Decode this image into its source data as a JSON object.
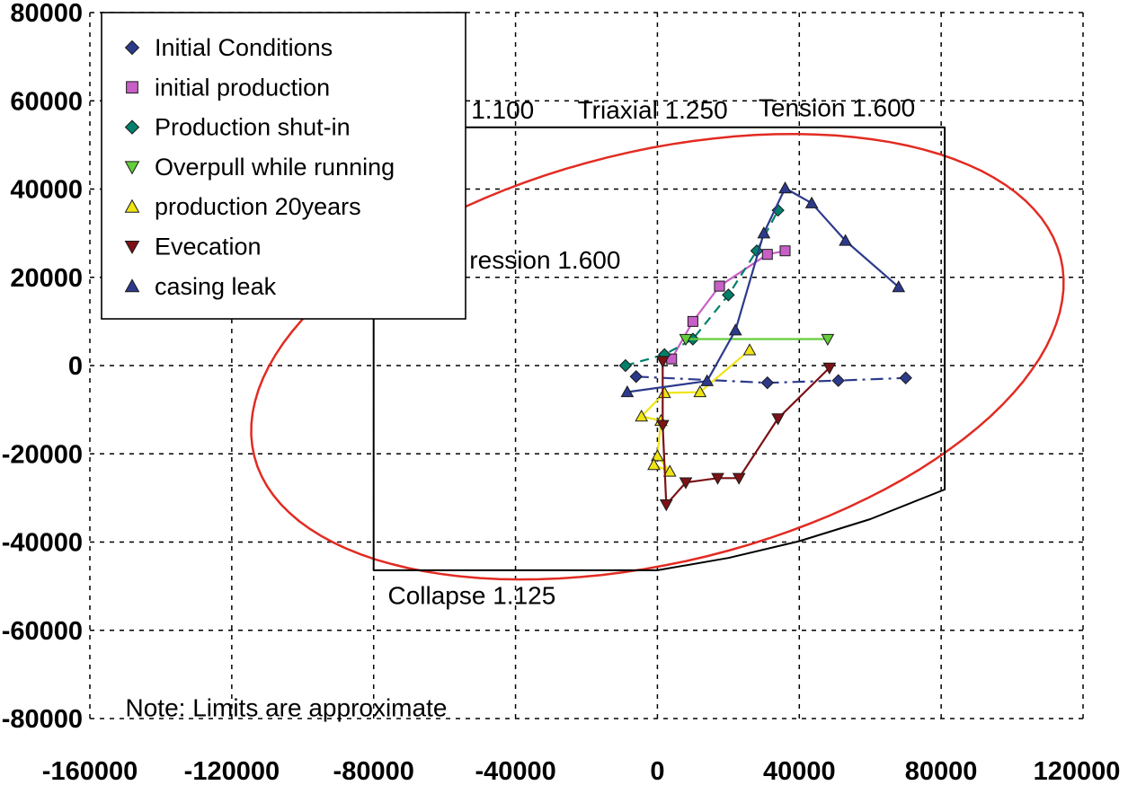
{
  "chart_data": {
    "type": "line",
    "title": "",
    "xlabel": "",
    "ylabel": "",
    "xlim": [
      -160000,
      120000
    ],
    "ylim": [
      -80000,
      80000
    ],
    "xticks": [
      -160000,
      -120000,
      -80000,
      -40000,
      0,
      40000,
      80000,
      120000
    ],
    "yticks": [
      80000,
      60000,
      40000,
      20000,
      0,
      -20000,
      -40000,
      -60000,
      -80000
    ],
    "grid": "dashed",
    "grid_color": "#000000",
    "triaxial_ellipse": {
      "cx": 0,
      "cy": 2000,
      "a": 116000,
      "b": 47000,
      "rotation_deg": 10,
      "color": "#e22b22"
    },
    "design_envelope": {
      "color": "#000000",
      "points": [
        [
          -80000,
          54000
        ],
        [
          81000,
          54000
        ],
        [
          81000,
          -28100
        ],
        [
          60000,
          -34800
        ],
        [
          40000,
          -39800
        ],
        [
          20000,
          -43600
        ],
        [
          0,
          -46400
        ],
        [
          -80000,
          -46400
        ]
      ]
    },
    "annotations": [
      {
        "id": "label-1100",
        "text": "1.100",
        "x": -52500,
        "y": 58000,
        "size": 28
      },
      {
        "id": "label-triaxial",
        "text": "Triaxial 1.250",
        "x": -22500,
        "y": 58000,
        "size": 28
      },
      {
        "id": "label-tension",
        "text": "Tension 1.600",
        "x": 28500,
        "y": 58500,
        "size": 28
      },
      {
        "id": "label-compression",
        "text": "ression 1.600",
        "x": -53000,
        "y": 24000,
        "size": 28
      },
      {
        "id": "label-collapse",
        "text": "Collapse 1.125",
        "x": -76000,
        "y": -52000,
        "size": 28
      },
      {
        "id": "note",
        "text": "Note: Limits are approximate",
        "x": -150000,
        "y": -77500,
        "size": 28
      }
    ],
    "series": [
      {
        "id": "initial-conditions",
        "label": "Initial Conditions",
        "color": "#2d3a8c",
        "marker": "diamond",
        "line_style": "dashdot",
        "points": [
          [
            -6000,
            -2500
          ],
          [
            31000,
            -3900
          ],
          [
            51000,
            -3400
          ],
          [
            70000,
            -2800
          ]
        ]
      },
      {
        "id": "initial-production",
        "label": "initial production",
        "color": "#c75fc7",
        "marker": "square",
        "line_style": "solid",
        "points": [
          [
            4000,
            1500
          ],
          [
            10000,
            10000
          ],
          [
            17500,
            18000
          ],
          [
            31000,
            25200
          ],
          [
            36000,
            26000
          ]
        ]
      },
      {
        "id": "production-shut-in",
        "label": "Production shut-in",
        "color": "#00806a",
        "marker": "diamond",
        "line_style": "dashed",
        "points": [
          [
            -9000,
            0
          ],
          [
            2000,
            2500
          ],
          [
            10000,
            6000
          ],
          [
            20000,
            16000
          ],
          [
            28000,
            26000
          ],
          [
            34000,
            35200
          ]
        ]
      },
      {
        "id": "overpull-while-running",
        "label": "Overpull while running",
        "color": "#63ce3a",
        "marker": "triangle-down",
        "line_style": "solid",
        "points": [
          [
            8000,
            6000
          ],
          [
            48000,
            6000
          ]
        ]
      },
      {
        "id": "production-20years",
        "label": "production 20years",
        "color": "#efe414",
        "marker": "triangle-up",
        "line_style": "solid",
        "points": [
          [
            26000,
            3500
          ],
          [
            12000,
            -6000
          ],
          [
            2000,
            -6200
          ],
          [
            -4500,
            -11500
          ],
          [
            1000,
            -12500
          ],
          [
            0,
            -20500
          ],
          [
            3500,
            -24000
          ],
          [
            -1000,
            -22500
          ]
        ]
      },
      {
        "id": "evecation",
        "label": "Evecation",
        "color": "#7c1216",
        "marker": "triangle-down",
        "line_style": "solid",
        "points": [
          [
            1500,
            1000
          ],
          [
            1500,
            -13500
          ],
          [
            2500,
            -31500
          ],
          [
            8000,
            -26500
          ],
          [
            17000,
            -25500
          ],
          [
            23000,
            -25500
          ],
          [
            34000,
            -12000
          ],
          [
            48500,
            -500
          ]
        ]
      },
      {
        "id": "casing-leak",
        "label": "casing leak",
        "color": "#2d3a8c",
        "marker": "triangle-up",
        "line_style": "solid",
        "points": [
          [
            -8500,
            -6000
          ],
          [
            14000,
            -3500
          ],
          [
            22000,
            8000
          ],
          [
            30000,
            30000
          ],
          [
            36000,
            40200
          ],
          [
            43500,
            36800
          ],
          [
            53000,
            28300
          ],
          [
            68000,
            17800
          ]
        ]
      }
    ],
    "legend": {
      "position": "top-left",
      "background": "#ffffff",
      "border_color": "#000000"
    }
  }
}
